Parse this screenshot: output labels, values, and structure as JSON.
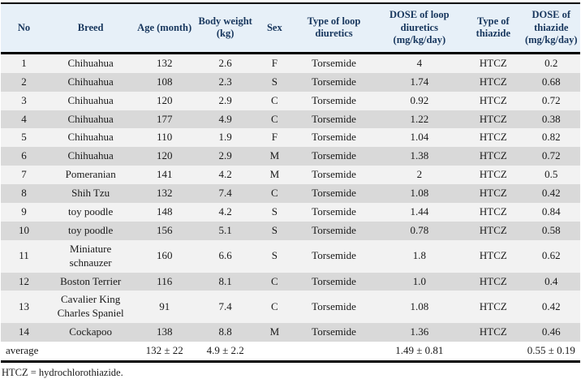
{
  "table": {
    "title_semantic": "dog-diuretic-dose-table",
    "columns": [
      "No",
      "Breed",
      "Age (month)",
      "Body weight (kg)",
      "Sex",
      "Type of loop diuretics",
      "DOSE of loop diuretics (mg/kg/day)",
      "Type of thiazide",
      "DOSE of thiazide (mg/kg/day)"
    ],
    "rows": [
      [
        "1",
        "Chihuahua",
        "132",
        "2.6",
        "F",
        "Torsemide",
        "4",
        "HTCZ",
        "0.2"
      ],
      [
        "2",
        "Chihuahua",
        "108",
        "2.3",
        "S",
        "Torsemide",
        "1.74",
        "HTCZ",
        "0.68"
      ],
      [
        "3",
        "Chihuahua",
        "120",
        "2.9",
        "C",
        "Torsemide",
        "0.92",
        "HTCZ",
        "0.72"
      ],
      [
        "4",
        "Chihuahua",
        "177",
        "4.9",
        "C",
        "Torsemide",
        "1.22",
        "HTCZ",
        "0.38"
      ],
      [
        "5",
        "Chihuahua",
        "110",
        "1.9",
        "F",
        "Torsemide",
        "1.04",
        "HTCZ",
        "0.82"
      ],
      [
        "6",
        "Chihuahua",
        "120",
        "2.9",
        "M",
        "Torsemide",
        "1.38",
        "HTCZ",
        "0.72"
      ],
      [
        "7",
        "Pomeranian",
        "141",
        "4.2",
        "M",
        "Torsemide",
        "2",
        "HTCZ",
        "0.5"
      ],
      [
        "8",
        "Shih Tzu",
        "132",
        "7.4",
        "C",
        "Torsemide",
        "1.08",
        "HTCZ",
        "0.42"
      ],
      [
        "9",
        "toy poodle",
        "148",
        "4.2",
        "S",
        "Torsemide",
        "1.44",
        "HTCZ",
        "0.84"
      ],
      [
        "10",
        "toy poodle",
        "156",
        "5.1",
        "S",
        "Torsemide",
        "0.78",
        "HTCZ",
        "0.58"
      ],
      [
        "11",
        "Miniature schnauzer",
        "160",
        "6.6",
        "S",
        "Torsemide",
        "1.8",
        "HTCZ",
        "0.62"
      ],
      [
        "12",
        "Boston Terrier",
        "116",
        "8.1",
        "C",
        "Torsemide",
        "1.0",
        "HTCZ",
        "0.4"
      ],
      [
        "13",
        "Cavalier King Charles Spaniel",
        "91",
        "7.4",
        "C",
        "Torsemide",
        "1.08",
        "HTCZ",
        "0.42"
      ],
      [
        "14",
        "Cockapoo",
        "138",
        "8.8",
        "M",
        "Torsemide",
        "1.36",
        "HTCZ",
        "0.46"
      ]
    ],
    "average_row": [
      "average",
      "",
      "132 ± 22",
      "4.9 ± 2.2",
      "",
      "",
      "1.49 ± 0.81",
      "",
      "0.55 ± 0.19"
    ]
  },
  "footnote": "HTCZ = hydrochlorothiazide.",
  "colors": {
    "header_bg": "#e7f0f8",
    "header_text": "#17365d",
    "row_odd": "#f2f2f2",
    "row_even": "#d9d9d9",
    "avg_bg": "#ffffff",
    "border": "#000000",
    "body_text": "#1a1a1a"
  }
}
